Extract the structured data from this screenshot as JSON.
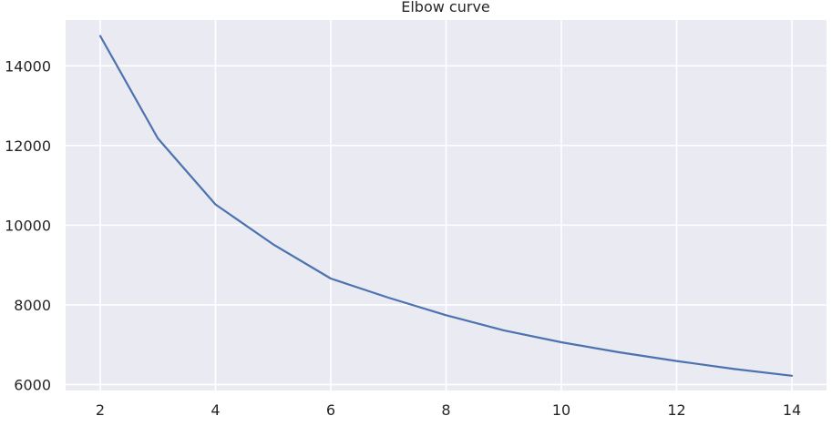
{
  "chart_data": {
    "type": "line",
    "title": "Elbow curve",
    "xlabel": "",
    "ylabel": "",
    "x": [
      2,
      3,
      4,
      5,
      6,
      7,
      8,
      9,
      10,
      11,
      12,
      13,
      14
    ],
    "series": [
      {
        "values": [
          14750,
          12180,
          10520,
          9520,
          8660,
          8180,
          7740,
          7360,
          7060,
          6810,
          6590,
          6390,
          6220
        ],
        "color": "#4c72b0"
      }
    ],
    "xlim": [
      1.4,
      14.6
    ],
    "ylim": [
      5850,
      15150
    ],
    "xticks": [
      2,
      4,
      6,
      8,
      10,
      12,
      14
    ],
    "yticks": [
      6000,
      8000,
      10000,
      12000,
      14000
    ],
    "grid": true,
    "background_color": "#eaeaf2",
    "grid_color": "#ffffff"
  }
}
